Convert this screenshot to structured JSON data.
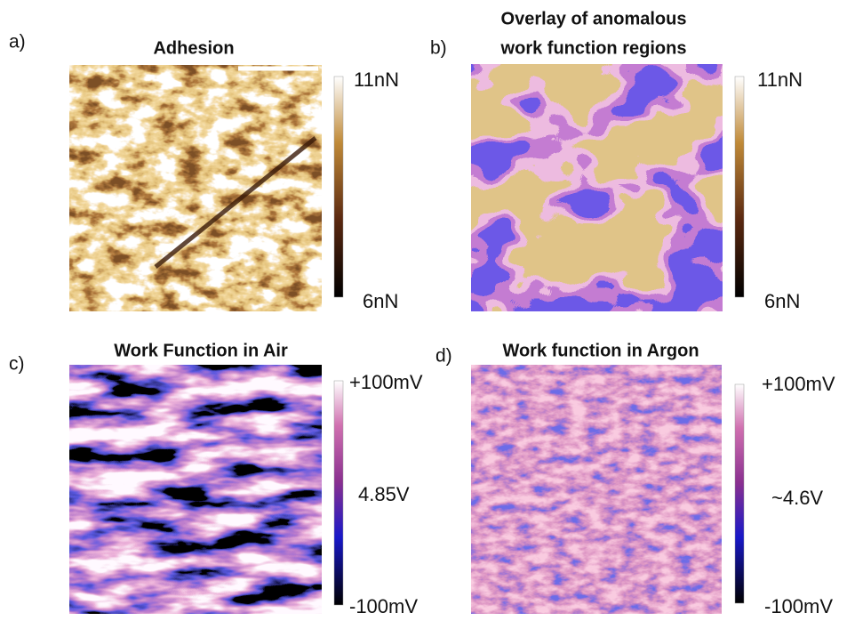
{
  "panels": [
    {
      "label": "a)",
      "title": [
        "Adhesion"
      ],
      "colorbar": {
        "top": "11nN",
        "bottom": "6nN"
      }
    },
    {
      "label": "b)",
      "title": [
        "Overlay of anomalous",
        "work function regions"
      ],
      "colorbar": {
        "top": "11nN",
        "bottom": "6nN"
      }
    },
    {
      "label": "c)",
      "title": [
        "Work Function in Air"
      ],
      "colorbar": {
        "top": "+100mV",
        "middle": "4.85V",
        "bottom": "-100mV"
      }
    },
    {
      "label": "d)",
      "title": [
        "Work function in Argon"
      ],
      "colorbar": {
        "top": "+100mV",
        "middle": "~4.6V",
        "bottom": "-100mV"
      }
    }
  ]
}
